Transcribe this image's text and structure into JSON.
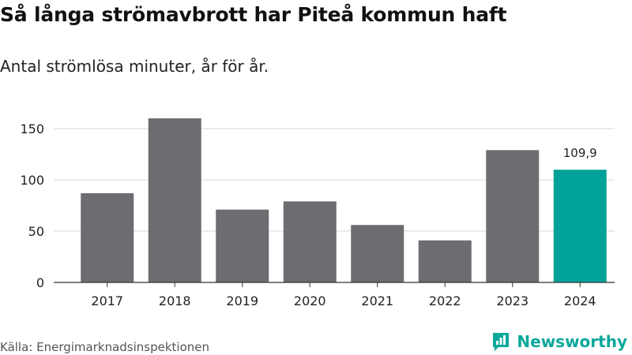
{
  "header": {
    "title": "Så långa strömavbrott har Piteå kommun haft",
    "subtitle": "Antal strömlösa minuter, år för år."
  },
  "footer": {
    "source": "Källa: Energimarknadsinspektionen",
    "brand": "Newsworthy",
    "brand_icon": "bar-chart-speech-bubble-icon"
  },
  "colors": {
    "bar": "#6d6c71",
    "highlight": "#00a29a",
    "grid": "#d9d9d9",
    "axis": "#333333",
    "brand": "#0aa89a"
  },
  "chart_data": {
    "type": "bar",
    "title": "Så långa strömavbrott har Piteå kommun haft",
    "subtitle": "Antal strömlösa minuter, år för år.",
    "categories": [
      "2017",
      "2018",
      "2019",
      "2020",
      "2021",
      "2022",
      "2023",
      "2024"
    ],
    "values": [
      87,
      160,
      71,
      79,
      56,
      41,
      129,
      109.9
    ],
    "highlight_index": 7,
    "data_labels": [
      {
        "index": 7,
        "text": "109,9"
      }
    ],
    "yticks": [
      0,
      50,
      100,
      150
    ],
    "ylim": [
      0,
      160
    ],
    "xlabel": "",
    "ylabel": "",
    "grid": true
  }
}
